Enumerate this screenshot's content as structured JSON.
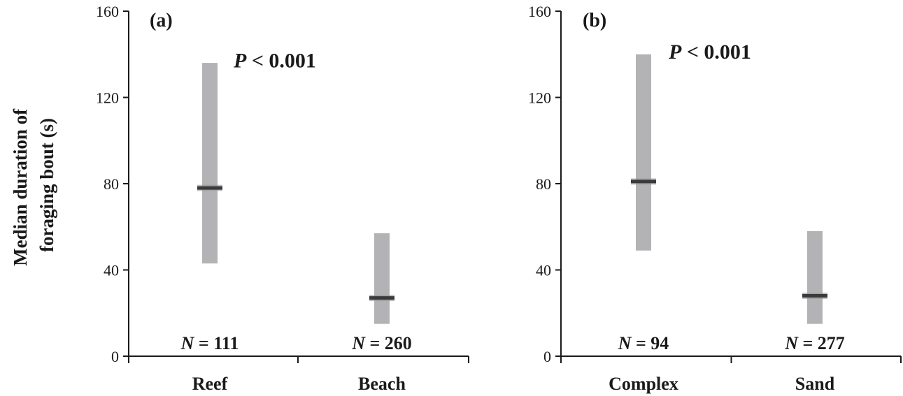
{
  "ylabel_line1": "Median duration of",
  "ylabel_line2": "foraging bout (s)",
  "chart_data": [
    {
      "type": "bar",
      "panel_label": "(a)",
      "annotation_italic": "P",
      "annotation_rest": " < 0.001",
      "categories": [
        "Reef",
        "Beach"
      ],
      "medians": [
        78,
        27
      ],
      "ranges": [
        [
          43,
          136
        ],
        [
          15,
          57
        ]
      ],
      "n_italic": "N",
      "n_values": [
        " = 111",
        " = 260"
      ],
      "ylim": [
        0,
        160
      ],
      "yticks": [
        "0",
        "40",
        "80",
        "120",
        "160"
      ],
      "ylabel": "Median duration of foraging bout (s)",
      "grid": false,
      "bar_color": "#b3b3b6",
      "median_color": "#3a3a3a"
    },
    {
      "type": "bar",
      "panel_label": "(b)",
      "annotation_italic": "P",
      "annotation_rest": " < 0.001",
      "categories": [
        "Complex",
        "Sand"
      ],
      "medians": [
        81,
        28
      ],
      "ranges": [
        [
          49,
          140
        ],
        [
          15,
          58
        ]
      ],
      "n_italic": "N",
      "n_values": [
        " = 94",
        " = 277"
      ],
      "ylim": [
        0,
        160
      ],
      "yticks": [
        "0",
        "40",
        "80",
        "120",
        "160"
      ],
      "grid": false,
      "bar_color": "#b3b3b6",
      "median_color": "#3a3a3a"
    }
  ]
}
